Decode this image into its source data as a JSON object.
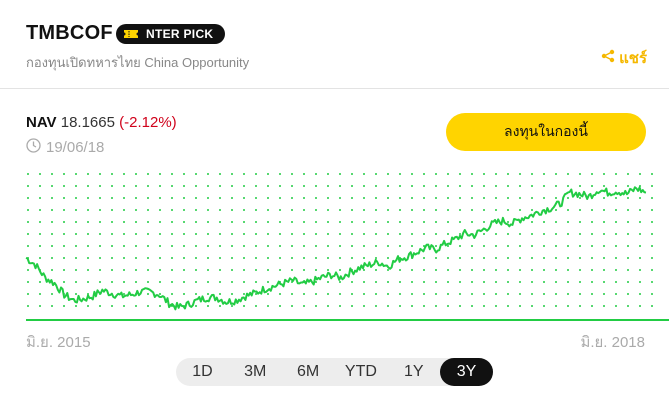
{
  "header": {
    "fund_code": "TMBCOF",
    "badge_label": "NTER PICK",
    "fund_name": "กองทุนเปิดทหารไทย China Opportunity",
    "share_label": "แชร์"
  },
  "summary": {
    "nav_label": "NAV",
    "nav_value": "18.1665",
    "nav_change": "(-2.12%)",
    "date": "19/06/18",
    "invest_button": "ลงทุนในกองนี้"
  },
  "colors": {
    "accent": "#ffd400",
    "line": "#22cc44",
    "negative": "#d0021b",
    "share": "#f5b800"
  },
  "chart_data": {
    "type": "line",
    "x_start_label": "มิ.ย. 2015",
    "x_end_label": "มิ.ย. 2018",
    "grid": true,
    "series": [
      {
        "values": [
          13.6,
          13.1,
          12.2,
          11.8,
          11.0,
          10.6,
          10.7,
          10.9,
          11.3,
          11.1,
          10.9,
          11.0,
          11.2,
          11.2,
          11.0,
          10.4,
          10.1,
          10.3,
          10.6,
          10.8,
          10.8,
          10.5,
          10.6,
          10.9,
          11.1,
          11.4,
          11.6,
          11.8,
          12.0,
          11.7,
          11.9,
          12.2,
          12.4,
          12.2,
          12.6,
          12.9,
          13.1,
          13.3,
          13.0,
          13.5,
          13.7,
          14.0,
          14.3,
          14.2,
          14.6,
          14.9,
          15.3,
          15.2,
          15.6,
          16.0,
          16.2,
          16.0,
          16.4,
          16.6,
          16.9,
          17.1,
          17.4,
          18.2,
          18.1,
          17.9,
          18.4,
          18.2,
          18.3,
          18.1,
          18.5,
          18.2
        ]
      }
    ],
    "ylim": [
      9.5,
      19.5
    ]
  },
  "ranges": {
    "items": [
      "1D",
      "3M",
      "6M",
      "YTD",
      "1Y",
      "3Y"
    ],
    "selected": "3Y"
  }
}
